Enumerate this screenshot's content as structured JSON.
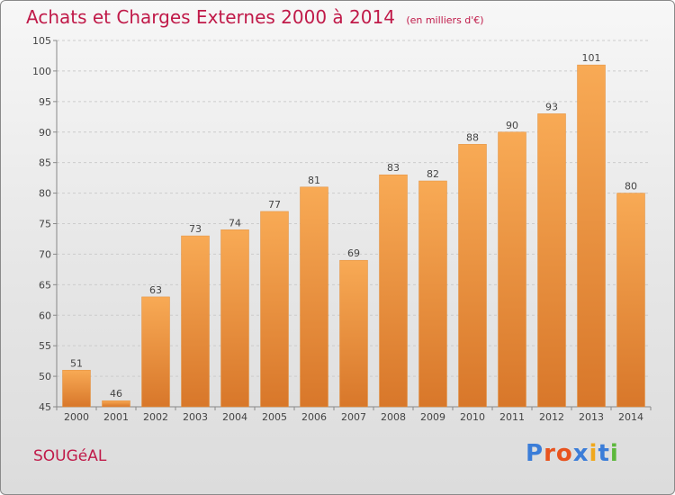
{
  "title": "Achats et Charges Externes 2000 à 2014",
  "unit": "(en milliers d'€)",
  "commune": "SOUGéAL",
  "brand": {
    "text": "Proxiti",
    "letter_colors": [
      "#3b7dd8",
      "#e8531e",
      "#e8531e",
      "#3b7dd8",
      "#f0a81c",
      "#3b7dd8",
      "#5cb83c"
    ]
  },
  "colors": {
    "title": "#c01a49",
    "bar_light": "#f8aa55",
    "bar_dark": "#d8772a",
    "grid": "#cccccc"
  },
  "chart_data": {
    "type": "bar",
    "title": "Achats et Charges Externes 2000 à 2014",
    "categories": [
      "2000",
      "2001",
      "2002",
      "2003",
      "2004",
      "2005",
      "2006",
      "2007",
      "2008",
      "2009",
      "2010",
      "2011",
      "2012",
      "2013",
      "2014"
    ],
    "values": [
      51,
      46,
      63,
      73,
      74,
      77,
      81,
      69,
      83,
      82,
      88,
      90,
      93,
      101,
      80
    ],
    "ylim": [
      45,
      105
    ],
    "yticks": [
      45,
      50,
      55,
      60,
      65,
      70,
      75,
      80,
      85,
      90,
      95,
      100,
      105
    ],
    "grid": "dashed horizontal"
  }
}
